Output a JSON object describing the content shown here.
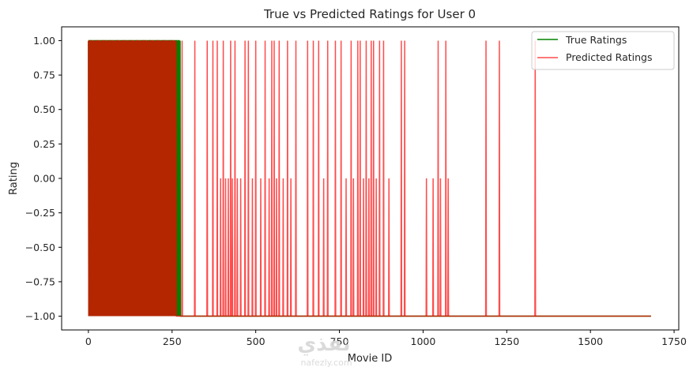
{
  "chart_data": {
    "type": "line",
    "title": "True vs Predicted Ratings for User 0",
    "xlabel": "Movie ID",
    "ylabel": "Rating",
    "xlim": [
      -80,
      1764
    ],
    "ylim": [
      -1.1,
      1.1
    ],
    "x_ticks": [
      0,
      250,
      500,
      750,
      1000,
      1250,
      1500,
      1750
    ],
    "y_ticks": [
      -1.0,
      -0.75,
      -0.5,
      -0.25,
      0.0,
      0.25,
      0.5,
      0.75,
      1.0
    ],
    "y_tick_labels": [
      "−1.00",
      "−0.75",
      "−0.50",
      "−0.25",
      "0.00",
      "0.25",
      "0.50",
      "0.75",
      "1.00"
    ],
    "grid": false,
    "legend": "top-right",
    "n_points": 1682,
    "series": [
      {
        "name": "True Ratings",
        "color": "#008000",
        "alpha": 1.0,
        "dense_segments": [
          {
            "start": 0,
            "end": 275,
            "pattern": [
              1,
              -1,
              1,
              1,
              -1,
              1,
              -1,
              1,
              1,
              -1,
              1,
              1,
              -1,
              0,
              1,
              -1,
              1,
              1,
              -1,
              1
            ]
          }
        ],
        "spikes": [],
        "baseline": -1
      },
      {
        "name": "Predicted Ratings",
        "color": "#ff0000",
        "alpha": 0.7,
        "dense_segments": [
          {
            "start": 0,
            "end": 262,
            "pattern": [
              1,
              -1,
              1,
              -1,
              1,
              1,
              -1,
              0,
              1,
              -1,
              1,
              -1,
              1,
              1,
              -1,
              1,
              -1,
              0,
              1,
              -1
            ]
          }
        ],
        "spikes": [
          [
            280,
            1
          ],
          [
            318,
            1
          ],
          [
            355,
            1
          ],
          [
            372,
            1
          ],
          [
            385,
            1
          ],
          [
            395,
            0
          ],
          [
            403,
            1
          ],
          [
            410,
            0
          ],
          [
            418,
            0
          ],
          [
            425,
            1
          ],
          [
            430,
            0
          ],
          [
            438,
            1
          ],
          [
            445,
            0
          ],
          [
            455,
            0
          ],
          [
            468,
            1
          ],
          [
            478,
            1
          ],
          [
            490,
            0
          ],
          [
            500,
            1
          ],
          [
            515,
            0
          ],
          [
            528,
            1
          ],
          [
            540,
            0
          ],
          [
            548,
            1
          ],
          [
            555,
            1
          ],
          [
            562,
            0
          ],
          [
            570,
            1
          ],
          [
            582,
            0
          ],
          [
            595,
            1
          ],
          [
            605,
            0
          ],
          [
            620,
            1
          ],
          [
            655,
            1
          ],
          [
            672,
            1
          ],
          [
            688,
            1
          ],
          [
            703,
            0
          ],
          [
            715,
            1
          ],
          [
            738,
            1
          ],
          [
            755,
            1
          ],
          [
            770,
            0
          ],
          [
            785,
            1
          ],
          [
            792,
            0
          ],
          [
            805,
            1
          ],
          [
            812,
            1
          ],
          [
            822,
            0
          ],
          [
            830,
            1
          ],
          [
            838,
            0
          ],
          [
            845,
            1
          ],
          [
            852,
            1
          ],
          [
            860,
            0
          ],
          [
            870,
            1
          ],
          [
            882,
            1
          ],
          [
            898,
            0
          ],
          [
            935,
            1
          ],
          [
            945,
            1
          ],
          [
            1010,
            0
          ],
          [
            1030,
            0
          ],
          [
            1045,
            1
          ],
          [
            1052,
            0
          ],
          [
            1068,
            1
          ],
          [
            1075,
            0
          ],
          [
            1188,
            1
          ],
          [
            1228,
            1
          ],
          [
            1335,
            1
          ]
        ],
        "baseline": -1
      }
    ]
  },
  "watermark": {
    "arabic": "نفذي",
    "latin": "nafezly.com"
  }
}
